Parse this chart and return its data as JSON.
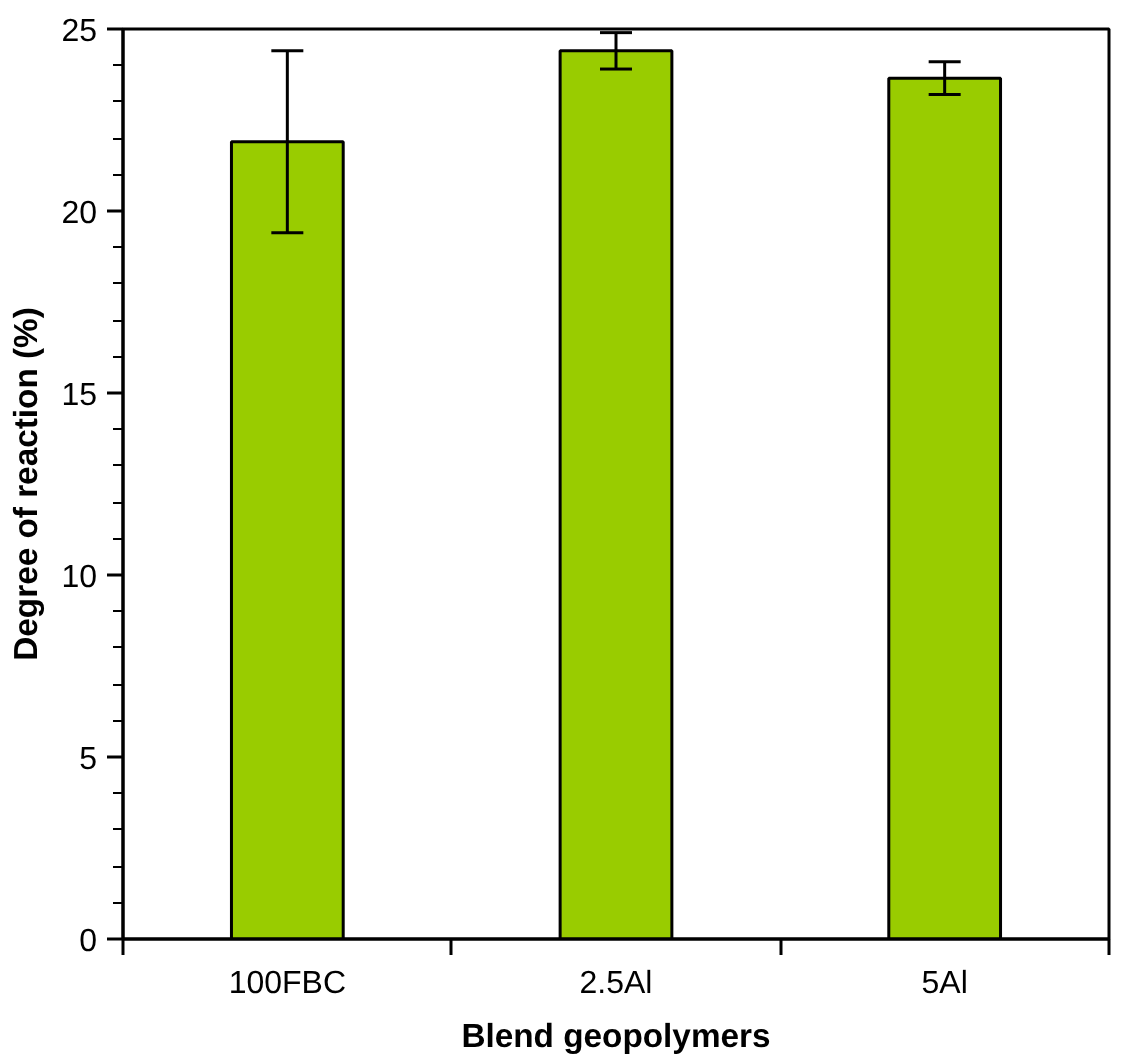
{
  "chart_data": {
    "type": "bar",
    "xlabel": "Blend geopolymers",
    "ylabel": "Degree of reaction (%)",
    "categories": [
      "100FBC",
      "2.5Al",
      "5Al"
    ],
    "values": [
      21.9,
      24.4,
      23.65
    ],
    "errors": [
      2.5,
      0.5,
      0.45
    ],
    "color": "#99cc00",
    "ylim": [
      0,
      25
    ],
    "yticks": [
      0,
      5,
      10,
      15,
      20,
      25
    ],
    "grid": false
  }
}
